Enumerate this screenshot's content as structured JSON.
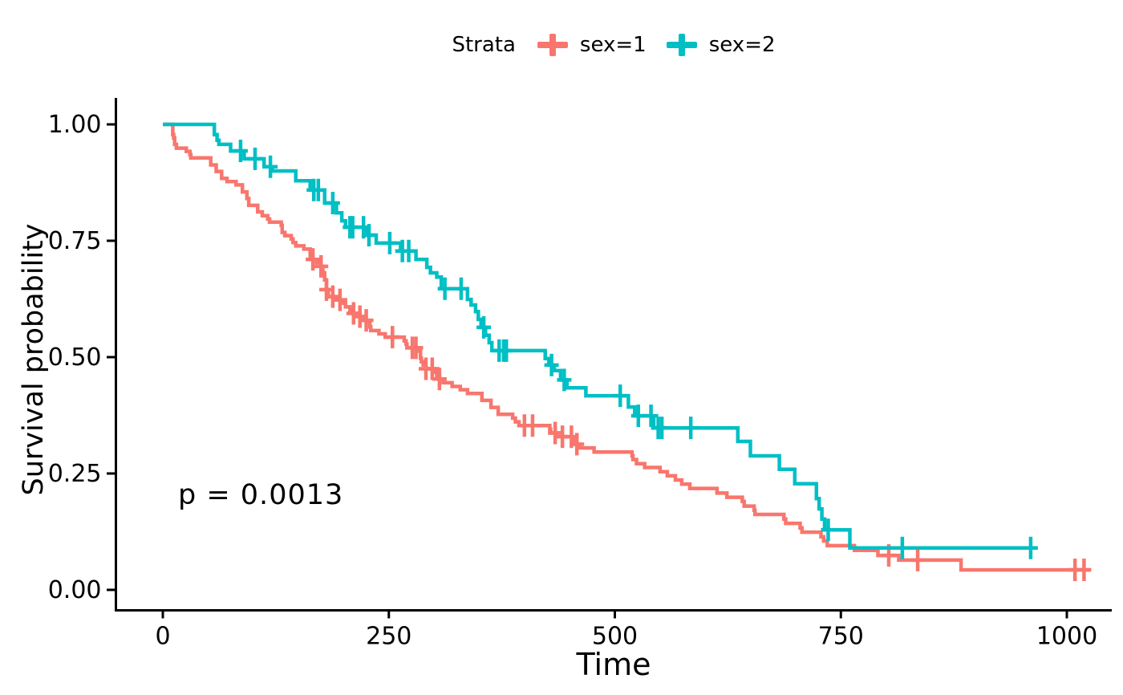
{
  "figure": {
    "background": "#ffffff",
    "legend": {
      "title": "Strata",
      "items": [
        {
          "label": "sex=1",
          "color": "#F8766D"
        },
        {
          "label": "sex=2",
          "color": "#00BFC4"
        }
      ]
    },
    "x_axis": {
      "title": "Time"
    },
    "y_axis": {
      "title": "Survival probability"
    },
    "annotation": {
      "p_value_text": "p = 0.0013"
    }
  },
  "chart_data": {
    "type": "line",
    "subtype": "kaplan_meier_step_curves",
    "title": "",
    "xlabel": "Time",
    "ylabel": "Survival probability",
    "legend_title": "Strata",
    "legend_position": "top",
    "grid": false,
    "xlim": [
      0,
      1045
    ],
    "ylim": [
      0,
      1
    ],
    "x_ticks": [
      {
        "label": "0",
        "value": 0
      },
      {
        "label": "250",
        "value": 250
      },
      {
        "label": "500",
        "value": 500
      },
      {
        "label": "750",
        "value": 750
      },
      {
        "label": "1000",
        "value": 1000
      }
    ],
    "y_ticks": [
      {
        "label": "0.00",
        "value": 0.0
      },
      {
        "label": "0.25",
        "value": 0.25
      },
      {
        "label": "0.50",
        "value": 0.5
      },
      {
        "label": "0.75",
        "value": 0.75
      },
      {
        "label": "1.00",
        "value": 1.0
      }
    ],
    "annotations": [
      {
        "text": "p = 0.0013"
      }
    ],
    "series": [
      {
        "name": "sex=1",
        "color": "#F8766D",
        "steps": [
          [
            0,
            1.0
          ],
          [
            11,
            0.978
          ],
          [
            12,
            0.971
          ],
          [
            13,
            0.957
          ],
          [
            15,
            0.949
          ],
          [
            26,
            0.942
          ],
          [
            30,
            0.935
          ],
          [
            31,
            0.928
          ],
          [
            53,
            0.913
          ],
          [
            59,
            0.899
          ],
          [
            65,
            0.884
          ],
          [
            71,
            0.877
          ],
          [
            81,
            0.87
          ],
          [
            88,
            0.855
          ],
          [
            93,
            0.841
          ],
          [
            95,
            0.826
          ],
          [
            105,
            0.812
          ],
          [
            110,
            0.804
          ],
          [
            116,
            0.797
          ],
          [
            118,
            0.79
          ],
          [
            131,
            0.783
          ],
          [
            132,
            0.768
          ],
          [
            135,
            0.761
          ],
          [
            142,
            0.754
          ],
          [
            144,
            0.746
          ],
          [
            147,
            0.739
          ],
          [
            156,
            0.732
          ],
          [
            163,
            0.717
          ],
          [
            166,
            0.71
          ],
          [
            170,
            0.703
          ],
          [
            175,
            0.695
          ],
          [
            177,
            0.681
          ],
          [
            179,
            0.666
          ],
          [
            181,
            0.645
          ],
          [
            183,
            0.63
          ],
          [
            189,
            0.623
          ],
          [
            197,
            0.616
          ],
          [
            202,
            0.608
          ],
          [
            207,
            0.601
          ],
          [
            210,
            0.594
          ],
          [
            218,
            0.587
          ],
          [
            222,
            0.579
          ],
          [
            229,
            0.565
          ],
          [
            230,
            0.557
          ],
          [
            239,
            0.55
          ],
          [
            246,
            0.543
          ],
          [
            267,
            0.535
          ],
          [
            269,
            0.528
          ],
          [
            270,
            0.52
          ],
          [
            283,
            0.513
          ],
          [
            285,
            0.498
          ],
          [
            286,
            0.49
          ],
          [
            288,
            0.483
          ],
          [
            291,
            0.475
          ],
          [
            301,
            0.468
          ],
          [
            303,
            0.46
          ],
          [
            306,
            0.453
          ],
          [
            310,
            0.445
          ],
          [
            320,
            0.437
          ],
          [
            329,
            0.43
          ],
          [
            337,
            0.422
          ],
          [
            353,
            0.407
          ],
          [
            363,
            0.392
          ],
          [
            371,
            0.377
          ],
          [
            387,
            0.369
          ],
          [
            390,
            0.361
          ],
          [
            394,
            0.353
          ],
          [
            428,
            0.345
          ],
          [
            429,
            0.337
          ],
          [
            442,
            0.329
          ],
          [
            455,
            0.321
          ],
          [
            457,
            0.313
          ],
          [
            460,
            0.305
          ],
          [
            477,
            0.296
          ],
          [
            519,
            0.288
          ],
          [
            520,
            0.28
          ],
          [
            524,
            0.271
          ],
          [
            533,
            0.263
          ],
          [
            550,
            0.254
          ],
          [
            558,
            0.245
          ],
          [
            567,
            0.236
          ],
          [
            574,
            0.227
          ],
          [
            583,
            0.218
          ],
          [
            613,
            0.208
          ],
          [
            624,
            0.199
          ],
          [
            641,
            0.19
          ],
          [
            643,
            0.18
          ],
          [
            654,
            0.171
          ],
          [
            655,
            0.162
          ],
          [
            687,
            0.152
          ],
          [
            689,
            0.143
          ],
          [
            705,
            0.133
          ],
          [
            707,
            0.124
          ],
          [
            728,
            0.114
          ],
          [
            731,
            0.105
          ],
          [
            735,
            0.095
          ],
          [
            765,
            0.085
          ],
          [
            791,
            0.074
          ],
          [
            814,
            0.064
          ],
          [
            883,
            0.043
          ],
          [
            1025,
            0.043
          ]
        ],
        "censor_times": [
          166,
          175,
          181,
          188,
          196,
          211,
          218,
          225,
          254,
          276,
          280,
          291,
          298,
          306,
          400,
          409,
          434,
          442,
          452,
          458,
          803,
          835,
          1009,
          1019
        ]
      },
      {
        "name": "sex=2",
        "color": "#00BFC4",
        "steps": [
          [
            0,
            1.0
          ],
          [
            57,
            0.978
          ],
          [
            60,
            0.966
          ],
          [
            62,
            0.957
          ],
          [
            75,
            0.943
          ],
          [
            90,
            0.926
          ],
          [
            112,
            0.909
          ],
          [
            121,
            0.9
          ],
          [
            147,
            0.879
          ],
          [
            163,
            0.859
          ],
          [
            179,
            0.831
          ],
          [
            192,
            0.81
          ],
          [
            198,
            0.793
          ],
          [
            202,
            0.779
          ],
          [
            225,
            0.762
          ],
          [
            236,
            0.745
          ],
          [
            263,
            0.728
          ],
          [
            280,
            0.71
          ],
          [
            292,
            0.693
          ],
          [
            296,
            0.681
          ],
          [
            303,
            0.672
          ],
          [
            308,
            0.647
          ],
          [
            337,
            0.624
          ],
          [
            341,
            0.612
          ],
          [
            346,
            0.598
          ],
          [
            349,
            0.581
          ],
          [
            352,
            0.564
          ],
          [
            357,
            0.547
          ],
          [
            361,
            0.531
          ],
          [
            364,
            0.514
          ],
          [
            423,
            0.497
          ],
          [
            427,
            0.483
          ],
          [
            433,
            0.471
          ],
          [
            440,
            0.451
          ],
          [
            447,
            0.434
          ],
          [
            468,
            0.417
          ],
          [
            515,
            0.393
          ],
          [
            522,
            0.374
          ],
          [
            543,
            0.348
          ],
          [
            636,
            0.319
          ],
          [
            650,
            0.288
          ],
          [
            682,
            0.259
          ],
          [
            699,
            0.228
          ],
          [
            723,
            0.196
          ],
          [
            726,
            0.174
          ],
          [
            729,
            0.152
          ],
          [
            732,
            0.129
          ],
          [
            760,
            0.09
          ],
          [
            965,
            0.09
          ]
        ],
        "censor_times": [
          86,
          102,
          119,
          167,
          172,
          188,
          207,
          210,
          222,
          228,
          251,
          265,
          272,
          312,
          330,
          355,
          372,
          377,
          380,
          430,
          444,
          506,
          526,
          540,
          548,
          552,
          584,
          736,
          818,
          960
        ]
      }
    ]
  }
}
